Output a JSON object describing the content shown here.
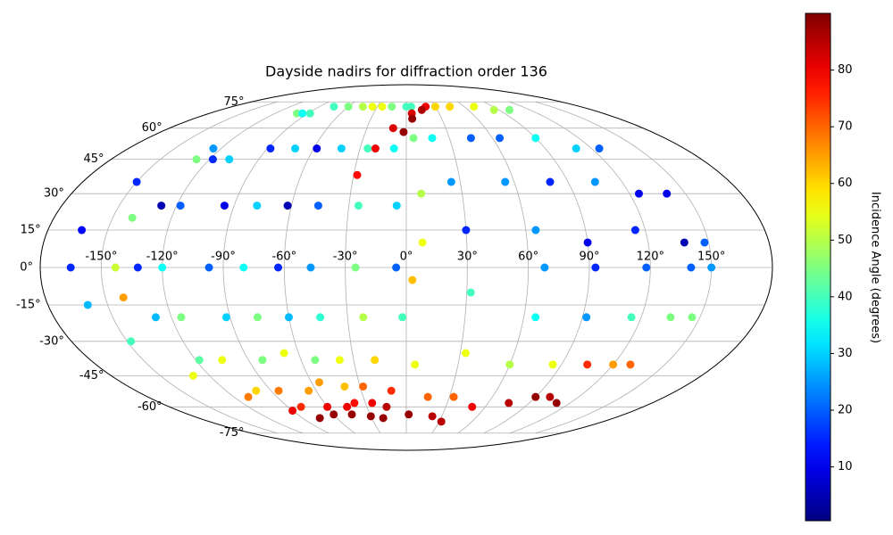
{
  "chart_data": {
    "type": "scatter",
    "projection": "mollweide",
    "title": "Dayside nadirs for diffraction order 136",
    "colorbar_label": "Incidence Angle (degrees)",
    "colormap": "jet",
    "grid": true,
    "xlim": [
      -180,
      180
    ],
    "ylim": [
      -90,
      90
    ],
    "xticks": [
      {
        "value": -150,
        "label": "-150°"
      },
      {
        "value": -120,
        "label": "-120°"
      },
      {
        "value": -90,
        "label": "-90°"
      },
      {
        "value": -60,
        "label": "-60°"
      },
      {
        "value": -30,
        "label": "-30°"
      },
      {
        "value": 0,
        "label": "0°"
      },
      {
        "value": 30,
        "label": "30°"
      },
      {
        "value": 60,
        "label": "60°"
      },
      {
        "value": 90,
        "label": "90°"
      },
      {
        "value": 120,
        "label": "120°"
      },
      {
        "value": 150,
        "label": "150°"
      }
    ],
    "yticks": [
      {
        "value": -75,
        "label": "-75°"
      },
      {
        "value": -60,
        "label": "-60°"
      },
      {
        "value": -45,
        "label": "-45°"
      },
      {
        "value": -30,
        "label": "-30°"
      },
      {
        "value": -15,
        "label": "-15°"
      },
      {
        "value": 0,
        "label": "0°"
      },
      {
        "value": 15,
        "label": "15°"
      },
      {
        "value": 30,
        "label": "30°"
      },
      {
        "value": 45,
        "label": "45°"
      },
      {
        "value": 60,
        "label": "60°"
      },
      {
        "value": 75,
        "label": "75°"
      }
    ],
    "clim": [
      0.5,
      90
    ],
    "cticks": [
      10,
      20,
      30,
      40,
      50,
      60,
      70,
      80
    ],
    "series": [
      {
        "x": [
          -125,
          -150,
          -163,
          -165,
          -160,
          -148,
          -130,
          -110,
          -90,
          -75
        ],
        "y": [
          50,
          35,
          15,
          0,
          -15,
          -30,
          -45,
          -55,
          -62,
          -66
        ],
        "values": [
          25,
          15,
          12,
          15,
          28,
          40,
          55,
          68,
          80,
          88
        ]
      },
      {
        "x": [
          -100,
          -128,
          -140,
          -143,
          -141
        ],
        "y": [
          68,
          45,
          20,
          0,
          -12
        ],
        "values": [
          45,
          45,
          45,
          52,
          65
        ]
      },
      {
        "x": [
          -95,
          -118,
          -128,
          -132,
          -128,
          -118,
          -100,
          -80,
          -60
        ],
        "y": [
          68,
          45,
          25,
          0,
          -20,
          -38,
          -52,
          -60,
          -64
        ],
        "values": [
          35,
          15,
          5,
          15,
          28,
          42,
          60,
          75,
          88
        ]
      },
      {
        "x": [
          -88,
          -108,
          -118,
          -120,
          -115,
          -105,
          -85,
          -60,
          -45
        ],
        "y": [
          68,
          45,
          25,
          0,
          -20,
          -38,
          -52,
          -60,
          -64
        ],
        "values": [
          40,
          30,
          20,
          35,
          45,
          55,
          68,
          80,
          88
        ]
      },
      {
        "x": [
          -75,
          -88,
          -95,
          -97,
          -92,
          -82,
          -65,
          -45,
          -30
        ],
        "y": [
          72,
          50,
          25,
          0,
          -20,
          -38,
          -52,
          -60,
          -65
        ],
        "values": [
          40,
          15,
          10,
          20,
          30,
          45,
          65,
          80,
          88
        ]
      },
      {
        "x": [
          -60,
          -72,
          -78,
          -80,
          -76,
          -68,
          -55,
          -38,
          -20
        ],
        "y": [
          72,
          50,
          25,
          0,
          -20,
          -35,
          -48,
          -58,
          -66
        ],
        "values": [
          45,
          30,
          30,
          35,
          45,
          55,
          65,
          78,
          88
        ]
      },
      {
        "x": [
          -45,
          -58,
          -62,
          -63,
          -60,
          -52,
          -40,
          -25
        ],
        "y": [
          72,
          50,
          25,
          0,
          -20,
          -38,
          -50,
          -58
        ],
        "values": [
          50,
          10,
          5,
          15,
          28,
          45,
          62,
          80
        ]
      },
      {
        "x": [
          -35,
          -42,
          -46,
          -47,
          -44,
          -38,
          -28,
          -15
        ],
        "y": [
          72,
          50,
          25,
          0,
          -20,
          -38,
          -50,
          -60
        ],
        "values": [
          55,
          30,
          20,
          25,
          38,
          55,
          70,
          85
        ]
      },
      {
        "x": [
          -25,
          -25,
          -25,
          -25,
          -22,
          -18,
          -10,
          2
        ],
        "y": [
          72,
          50,
          25,
          0,
          -20,
          -38,
          -52,
          -64
        ],
        "values": [
          55,
          40,
          40,
          45,
          50,
          60,
          75,
          88
        ]
      },
      {
        "x": [
          -15,
          -8,
          -5,
          -5,
          -2,
          5,
          15,
          22
        ],
        "y": [
          72,
          50,
          25,
          0,
          -20,
          -40,
          -55,
          -65
        ],
        "values": [
          45,
          35,
          30,
          20,
          40,
          55,
          70,
          85
        ]
      },
      {
        "x": [
          0,
          5,
          8,
          8,
          3
        ],
        "y": [
          72,
          55,
          30,
          10,
          -5
        ],
        "values": [
          40,
          45,
          50,
          55,
          62
        ]
      },
      {
        "x": [
          5,
          18,
          25,
          30,
          32,
          33,
          33,
          32
        ],
        "y": [
          72,
          55,
          35,
          15,
          -10,
          -35,
          -55,
          -68
        ],
        "values": [
          40,
          35,
          25,
          15,
          40,
          55,
          70,
          85
        ]
      },
      {
        "x": [
          30,
          45,
          55,
          65,
          68,
          66,
          60,
          50
        ],
        "y": [
          72,
          55,
          35,
          15,
          0,
          -20,
          -40,
          -60
        ],
        "values": [
          60,
          20,
          25,
          25,
          25,
          35,
          50,
          80
        ]
      },
      {
        "x": [
          45,
          65,
          80,
          90,
          93,
          92,
          85,
          75
        ],
        "y": [
          72,
          55,
          35,
          10,
          0,
          -20,
          -40,
          -58
        ],
        "values": [
          60,
          20,
          15,
          10,
          15,
          25,
          55,
          85
        ]
      },
      {
        "x": [
          70,
          90,
          105,
          115,
          118,
          115,
          105,
          90
        ],
        "y": [
          72,
          55,
          35,
          15,
          0,
          -20,
          -40,
          -55
        ],
        "values": [
          55,
          35,
          25,
          15,
          20,
          40,
          75,
          88
        ]
      },
      {
        "x": [
          85,
          110,
          125,
          138,
          140,
          135,
          120,
          100
        ],
        "y": [
          70,
          50,
          30,
          10,
          0,
          -20,
          -40,
          -55
        ],
        "values": [
          50,
          30,
          10,
          5,
          20,
          45,
          65,
          85
        ]
      },
      {
        "x": [
          100,
          125,
          140,
          148,
          150,
          146,
          130,
          110
        ],
        "y": [
          70,
          50,
          30,
          10,
          0,
          -20,
          -40,
          -58
        ],
        "values": [
          45,
          20,
          10,
          20,
          25,
          45,
          70,
          88
        ]
      },
      {
        "x": [
          -28,
          -20,
          -10,
          5,
          20
        ],
        "y": [
          38,
          50,
          60,
          68,
          72
        ],
        "values": [
          78,
          80,
          82,
          82,
          80
        ]
      },
      {
        "x": [
          -2,
          5,
          15
        ],
        "y": [
          58,
          65,
          70
        ],
        "values": [
          88,
          88,
          86
        ]
      }
    ]
  }
}
